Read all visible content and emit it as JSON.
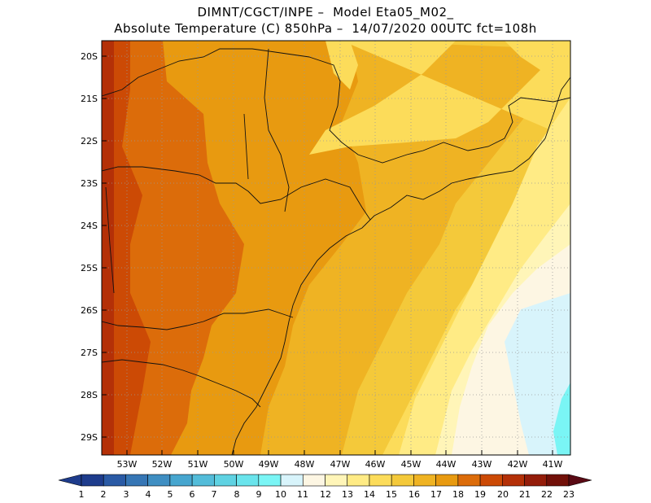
{
  "title": {
    "line1": "DIMNT/CGCT/INPE –  Model Eta05_M02_",
    "line2": "Absolute Temperature (C) 850hPa –  14/07/2020 00UTC fct=108h"
  },
  "map": {
    "variable": "Absolute Temperature (C)",
    "level": "850hPa",
    "lat_labels": [
      "20S",
      "21S",
      "22S",
      "23S",
      "24S",
      "25S",
      "26S",
      "27S",
      "28S",
      "29S"
    ],
    "lon_labels": [
      "53W",
      "52W",
      "51W",
      "50W",
      "49W",
      "48W",
      "47W",
      "46W",
      "45W",
      "44W",
      "43W",
      "42W",
      "41W"
    ]
  },
  "colorbar": {
    "labels": [
      "1",
      "2",
      "3",
      "4",
      "5",
      "6",
      "7",
      "8",
      "9",
      "10",
      "11",
      "12",
      "13",
      "14",
      "15",
      "16",
      "17",
      "18",
      "19",
      "20",
      "21",
      "22",
      "23"
    ],
    "colors": [
      "#1e3c8c",
      "#2a5aa5",
      "#3676b5",
      "#3f8ec2",
      "#47a6cf",
      "#53bcd9",
      "#5fd2e2",
      "#6ae4ec",
      "#7af5f5",
      "#d8f4fb",
      "#fdf6e3",
      "#fff5b8",
      "#ffeb85",
      "#fcdc5a",
      "#f4c93a",
      "#efb323",
      "#e89a10",
      "#dc6c0a",
      "#cc4a05",
      "#b43007",
      "#941d0a",
      "#721009"
    ]
  }
}
